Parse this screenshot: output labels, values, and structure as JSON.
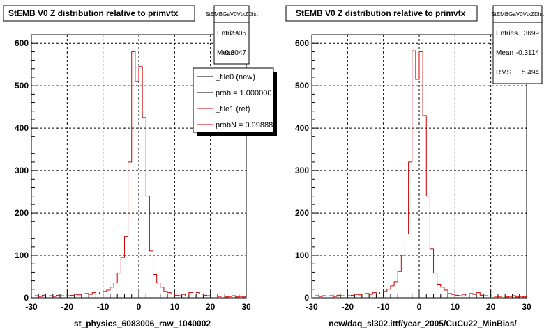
{
  "footer_text": "",
  "chart_data": [
    {
      "type": "histogram",
      "title": "StEMB V0 Z distribution relative to primvtx",
      "xlabel": "st_physics_6083006_raw_1040002",
      "xlim": [
        -30,
        30
      ],
      "ylim": [
        0,
        620
      ],
      "xticks": [
        "-30",
        "-20",
        "-10",
        "0",
        "10",
        "20",
        "30"
      ],
      "yticks": [
        "0",
        "100",
        "200",
        "300",
        "400",
        "500",
        "600"
      ],
      "grid": true,
      "stats": {
        "name": "StEMBGaV0VtxZDist",
        "entries_label": "Entries",
        "entries": "3705",
        "mean_label": "Mean",
        "mean": "-0.3047"
      },
      "legend": [
        "_file0 (new)",
        "prob = 1.000000",
        "_file1 (ref)",
        "probN = 0.99888"
      ],
      "legend_colors": [
        "#000000",
        "#000000",
        "#cc0000",
        "#cc0000"
      ],
      "series": [
        {
          "name": "_file1 (ref)",
          "color": "#cc0000",
          "bin_edges": [
            -30,
            -29,
            -28,
            -27,
            -26,
            -25,
            -24,
            -23,
            -22,
            -21,
            -20,
            -19,
            -18,
            -17,
            -16,
            -15,
            -14,
            -13,
            -12,
            -11,
            -10,
            -9,
            -8,
            -7,
            -6,
            -5,
            -4,
            -3,
            -2,
            -1,
            0,
            1,
            2,
            3,
            4,
            5,
            6,
            7,
            8,
            9,
            10,
            11,
            12,
            13,
            14,
            15,
            16,
            17,
            18,
            19,
            20,
            21,
            22,
            23,
            24,
            25,
            26,
            27,
            28,
            29,
            30
          ],
          "counts": [
            4,
            5,
            3,
            6,
            4,
            5,
            3,
            6,
            5,
            4,
            5,
            6,
            8,
            7,
            9,
            10,
            8,
            12,
            9,
            14,
            15,
            18,
            25,
            35,
            58,
            95,
            145,
            320,
            580,
            510,
            545,
            425,
            240,
            110,
            55,
            35,
            25,
            15,
            12,
            9,
            6,
            5,
            8,
            4,
            12,
            14,
            12,
            9,
            6,
            5,
            4,
            4,
            3,
            4,
            2,
            3,
            5,
            2,
            3,
            2
          ]
        }
      ]
    },
    {
      "type": "histogram",
      "title": "StEMB V0 Z distribution relative to primvtx",
      "xlabel": "new/daq_sl302.ittf/year_2005/CuCu22_MinBias/",
      "xlim": [
        -30,
        30
      ],
      "ylim": [
        0,
        620
      ],
      "xticks": [
        "-30",
        "-20",
        "-10",
        "0",
        "10",
        "20",
        "30"
      ],
      "yticks": [
        "0",
        "100",
        "200",
        "300",
        "400",
        "500",
        "600"
      ],
      "grid": true,
      "stats": {
        "name": "StEMBGaV0VtxZDist",
        "entries_label": "Entries",
        "entries": "3699",
        "mean_label": "Mean",
        "mean": "-0.3114",
        "rms_label": "RMS",
        "rms": "5.494"
      },
      "series": [
        {
          "color": "#cc0000",
          "bin_edges": [
            -30,
            -29,
            -28,
            -27,
            -26,
            -25,
            -24,
            -23,
            -22,
            -21,
            -20,
            -19,
            -18,
            -17,
            -16,
            -15,
            -14,
            -13,
            -12,
            -11,
            -10,
            -9,
            -8,
            -7,
            -6,
            -5,
            -4,
            -3,
            -2,
            -1,
            0,
            1,
            2,
            3,
            4,
            5,
            6,
            7,
            8,
            9,
            10,
            11,
            12,
            13,
            14,
            15,
            16,
            17,
            18,
            19,
            20,
            21,
            22,
            23,
            24,
            25,
            26,
            27,
            28,
            29,
            30
          ],
          "counts": [
            4,
            5,
            3,
            5,
            4,
            5,
            3,
            6,
            5,
            4,
            5,
            6,
            8,
            7,
            9,
            10,
            8,
            12,
            9,
            14,
            15,
            20,
            28,
            38,
            62,
            100,
            150,
            320,
            582,
            515,
            580,
            430,
            240,
            115,
            58,
            32,
            25,
            18,
            10,
            8,
            6,
            5,
            8,
            4,
            10,
            8,
            12,
            6,
            5,
            4,
            4,
            3,
            3,
            4,
            2,
            3,
            5,
            2,
            3,
            2
          ]
        }
      ]
    }
  ]
}
